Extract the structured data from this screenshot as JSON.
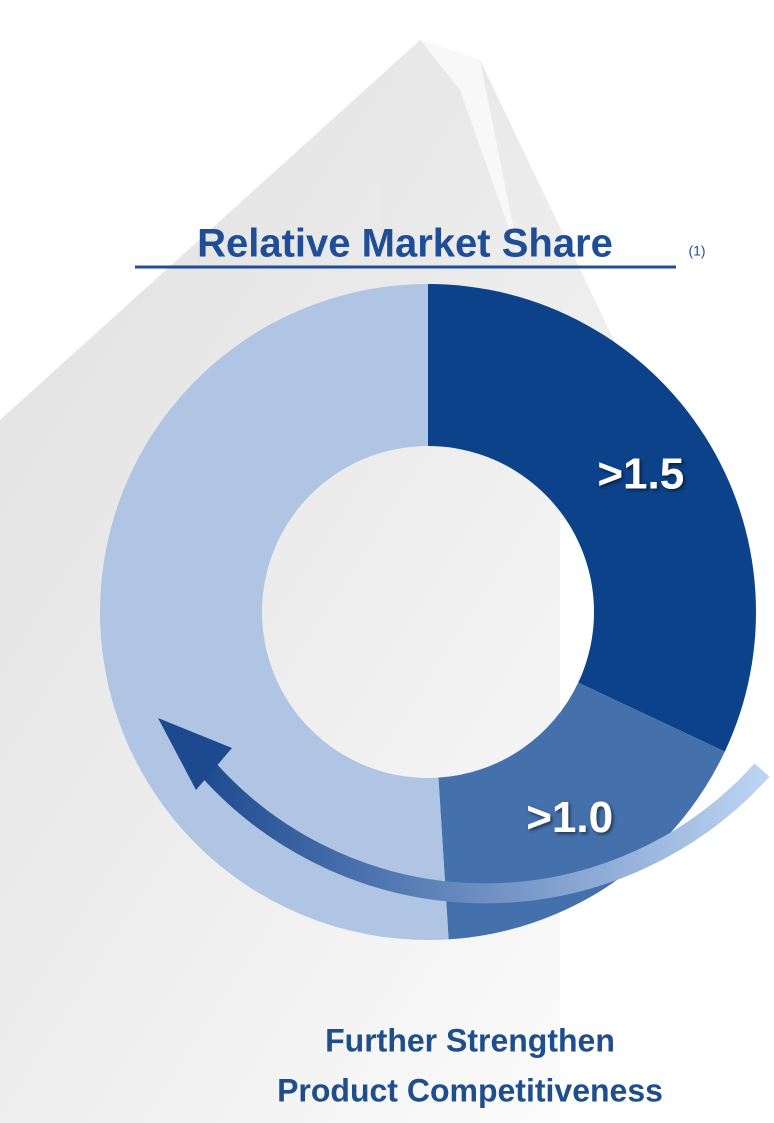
{
  "chart_data": {
    "type": "donut",
    "title": "Relative Market Share",
    "title_note": "(1)",
    "categories": [
      ">1.5",
      ">1.0",
      null
    ],
    "values": [
      32,
      17,
      51
    ],
    "colors": [
      "#0b428a",
      "#4470ab",
      "#afc5e3"
    ],
    "footer": [
      "Further Strengthen",
      "Product Competitiveness"
    ]
  }
}
